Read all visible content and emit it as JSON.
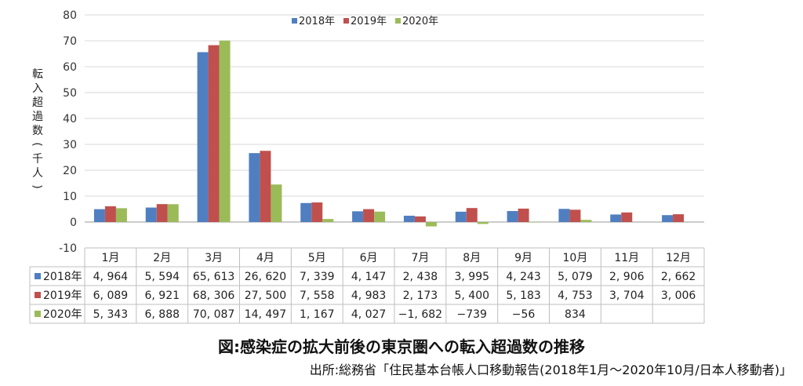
{
  "caption": "図:感染症の拡大前後の東京圏への転入超過数の推移",
  "source": "出所:総務省「住民基本台帳人口移動報告(2018年1月〜2020年10月/日本人移動者)」",
  "chart_data": {
    "type": "bar",
    "ylabel": "転入超過数(千人)",
    "ylim": [
      -10,
      80
    ],
    "yticks": [
      -10,
      0,
      10,
      20,
      30,
      40,
      50,
      60,
      70,
      80
    ],
    "grid": true,
    "legend_position": "top",
    "categories": [
      "1月",
      "2月",
      "3月",
      "4月",
      "5月",
      "6月",
      "7月",
      "8月",
      "9月",
      "10月",
      "11月",
      "12月"
    ],
    "series": [
      {
        "name": "2018年",
        "color": "#4f7fc1",
        "values": [
          4.964,
          5.594,
          65.613,
          26.62,
          7.339,
          4.147,
          2.438,
          3.995,
          4.243,
          5.079,
          2.906,
          2.662
        ],
        "labels": [
          "4, 964",
          "5, 594",
          "65, 613",
          "26, 620",
          "7, 339",
          "4, 147",
          "2, 438",
          "3, 995",
          "4, 243",
          "5, 079",
          "2, 906",
          "2, 662"
        ]
      },
      {
        "name": "2019年",
        "color": "#c0504d",
        "values": [
          6.089,
          6.921,
          68.306,
          27.5,
          7.558,
          4.983,
          2.173,
          5.4,
          5.183,
          4.753,
          3.704,
          3.006
        ],
        "labels": [
          "6, 089",
          "6, 921",
          "68, 306",
          "27, 500",
          "7, 558",
          "4, 983",
          "2, 173",
          "5, 400",
          "5, 183",
          "4, 753",
          "3, 704",
          "3, 006"
        ]
      },
      {
        "name": "2020年",
        "color": "#9bbb59",
        "values": [
          5.343,
          6.888,
          70.087,
          14.497,
          1.167,
          4.027,
          -1.682,
          -0.739,
          -0.056,
          0.834,
          null,
          null
        ],
        "labels": [
          "5, 343",
          "6, 888",
          "70, 087",
          "14, 497",
          "1, 167",
          "4, 027",
          "−1, 682",
          "−739",
          "−56",
          "834",
          "",
          ""
        ]
      }
    ]
  }
}
